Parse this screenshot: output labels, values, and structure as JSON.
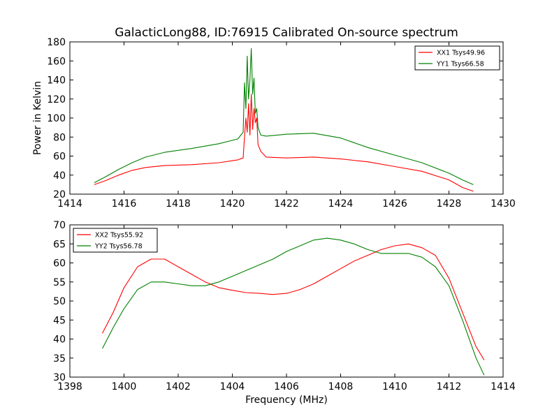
{
  "chart_data": [
    {
      "type": "line",
      "title": "GalacticLong88, ID:76915 Calibrated On-source spectrum",
      "xlabel": "",
      "ylabel": "Power in Kelvin",
      "xlim": [
        1414,
        1430
      ],
      "ylim": [
        20,
        180
      ],
      "xticks": [
        "1414",
        "1416",
        "1418",
        "1420",
        "1422",
        "1424",
        "1426",
        "1428",
        "1430"
      ],
      "yticks": [
        "20",
        "40",
        "60",
        "80",
        "100",
        "120",
        "140",
        "160",
        "180"
      ],
      "legend_position": "top-right",
      "series": [
        {
          "name": "XX1 Tsys49.96",
          "color": "#ff0000",
          "x": [
            1414.9,
            1415.3,
            1415.8,
            1416.3,
            1416.8,
            1417.5,
            1418.5,
            1419.5,
            1420.2,
            1420.4,
            1420.45,
            1420.5,
            1420.55,
            1420.6,
            1420.65,
            1420.7,
            1420.75,
            1420.8,
            1420.85,
            1420.9,
            1420.95,
            1421.05,
            1421.25,
            1422.0,
            1423.0,
            1424.0,
            1425.0,
            1426.0,
            1427.0,
            1428.0,
            1428.5,
            1428.9
          ],
          "values": [
            30,
            34,
            40,
            45,
            48,
            50,
            51,
            53,
            56,
            58,
            80,
            100,
            85,
            115,
            82,
            125,
            88,
            110,
            95,
            100,
            72,
            65,
            59,
            58,
            59,
            57,
            54,
            49,
            44,
            35,
            27,
            23
          ]
        },
        {
          "name": "YY1 Tsys66.58",
          "color": "#008000",
          "x": [
            1414.9,
            1415.3,
            1415.8,
            1416.3,
            1416.8,
            1417.5,
            1418.5,
            1419.5,
            1420.2,
            1420.4,
            1420.45,
            1420.5,
            1420.55,
            1420.6,
            1420.65,
            1420.7,
            1420.75,
            1420.8,
            1420.85,
            1420.9,
            1420.95,
            1421.05,
            1421.25,
            1422.0,
            1423.0,
            1424.0,
            1425.0,
            1426.0,
            1427.0,
            1428.0,
            1428.5,
            1428.9
          ],
          "values": [
            32,
            38,
            46,
            53,
            59,
            64,
            68,
            73,
            78,
            85,
            137,
            110,
            165,
            120,
            140,
            173,
            125,
            142,
            105,
            110,
            90,
            82,
            81,
            83,
            84,
            79,
            69,
            61,
            53,
            42,
            35,
            30
          ]
        }
      ]
    },
    {
      "type": "line",
      "title": "",
      "xlabel": "Frequency (MHz)",
      "ylabel": "",
      "xlim": [
        1398,
        1414
      ],
      "ylim": [
        30,
        70
      ],
      "xticks": [
        "1398",
        "1400",
        "1402",
        "1404",
        "1406",
        "1408",
        "1410",
        "1412",
        "1414"
      ],
      "yticks": [
        "30",
        "35",
        "40",
        "45",
        "50",
        "55",
        "60",
        "65",
        "70"
      ],
      "legend_position": "top-left",
      "series": [
        {
          "name": "XX2 Tsys55.92",
          "color": "#ff0000",
          "x": [
            1399.2,
            1399.6,
            1400.0,
            1400.5,
            1401.0,
            1401.5,
            1402.0,
            1402.5,
            1403.0,
            1403.5,
            1404.0,
            1404.5,
            1405.0,
            1405.5,
            1406.0,
            1406.5,
            1407.0,
            1407.5,
            1408.0,
            1408.5,
            1409.0,
            1409.5,
            1410.0,
            1410.5,
            1411.0,
            1411.5,
            1412.0,
            1412.5,
            1413.0,
            1413.3
          ],
          "values": [
            41.5,
            47,
            53.5,
            59,
            61,
            61,
            59,
            57,
            55,
            53.5,
            52.8,
            52.2,
            52,
            51.7,
            52,
            53,
            54.5,
            56.5,
            58.5,
            60.5,
            62,
            63.5,
            64.5,
            65,
            64,
            62,
            56,
            47,
            38,
            34.5
          ]
        },
        {
          "name": "YY2 Tsys56.78",
          "color": "#008000",
          "x": [
            1399.2,
            1399.6,
            1400.0,
            1400.5,
            1401.0,
            1401.5,
            1402.0,
            1402.5,
            1403.0,
            1403.5,
            1404.0,
            1404.5,
            1405.0,
            1405.5,
            1406.0,
            1406.5,
            1407.0,
            1407.5,
            1408.0,
            1408.5,
            1409.0,
            1409.5,
            1410.0,
            1410.5,
            1411.0,
            1411.5,
            1412.0,
            1412.5,
            1413.0,
            1413.3
          ],
          "values": [
            37.5,
            43,
            48,
            53,
            55,
            55,
            54.5,
            54,
            54,
            55,
            56.5,
            58,
            59.5,
            61,
            63,
            64.5,
            66,
            66.5,
            66,
            65,
            63.5,
            62.5,
            62.5,
            62.5,
            61.5,
            59,
            54,
            45,
            35,
            30.5
          ]
        }
      ]
    }
  ]
}
